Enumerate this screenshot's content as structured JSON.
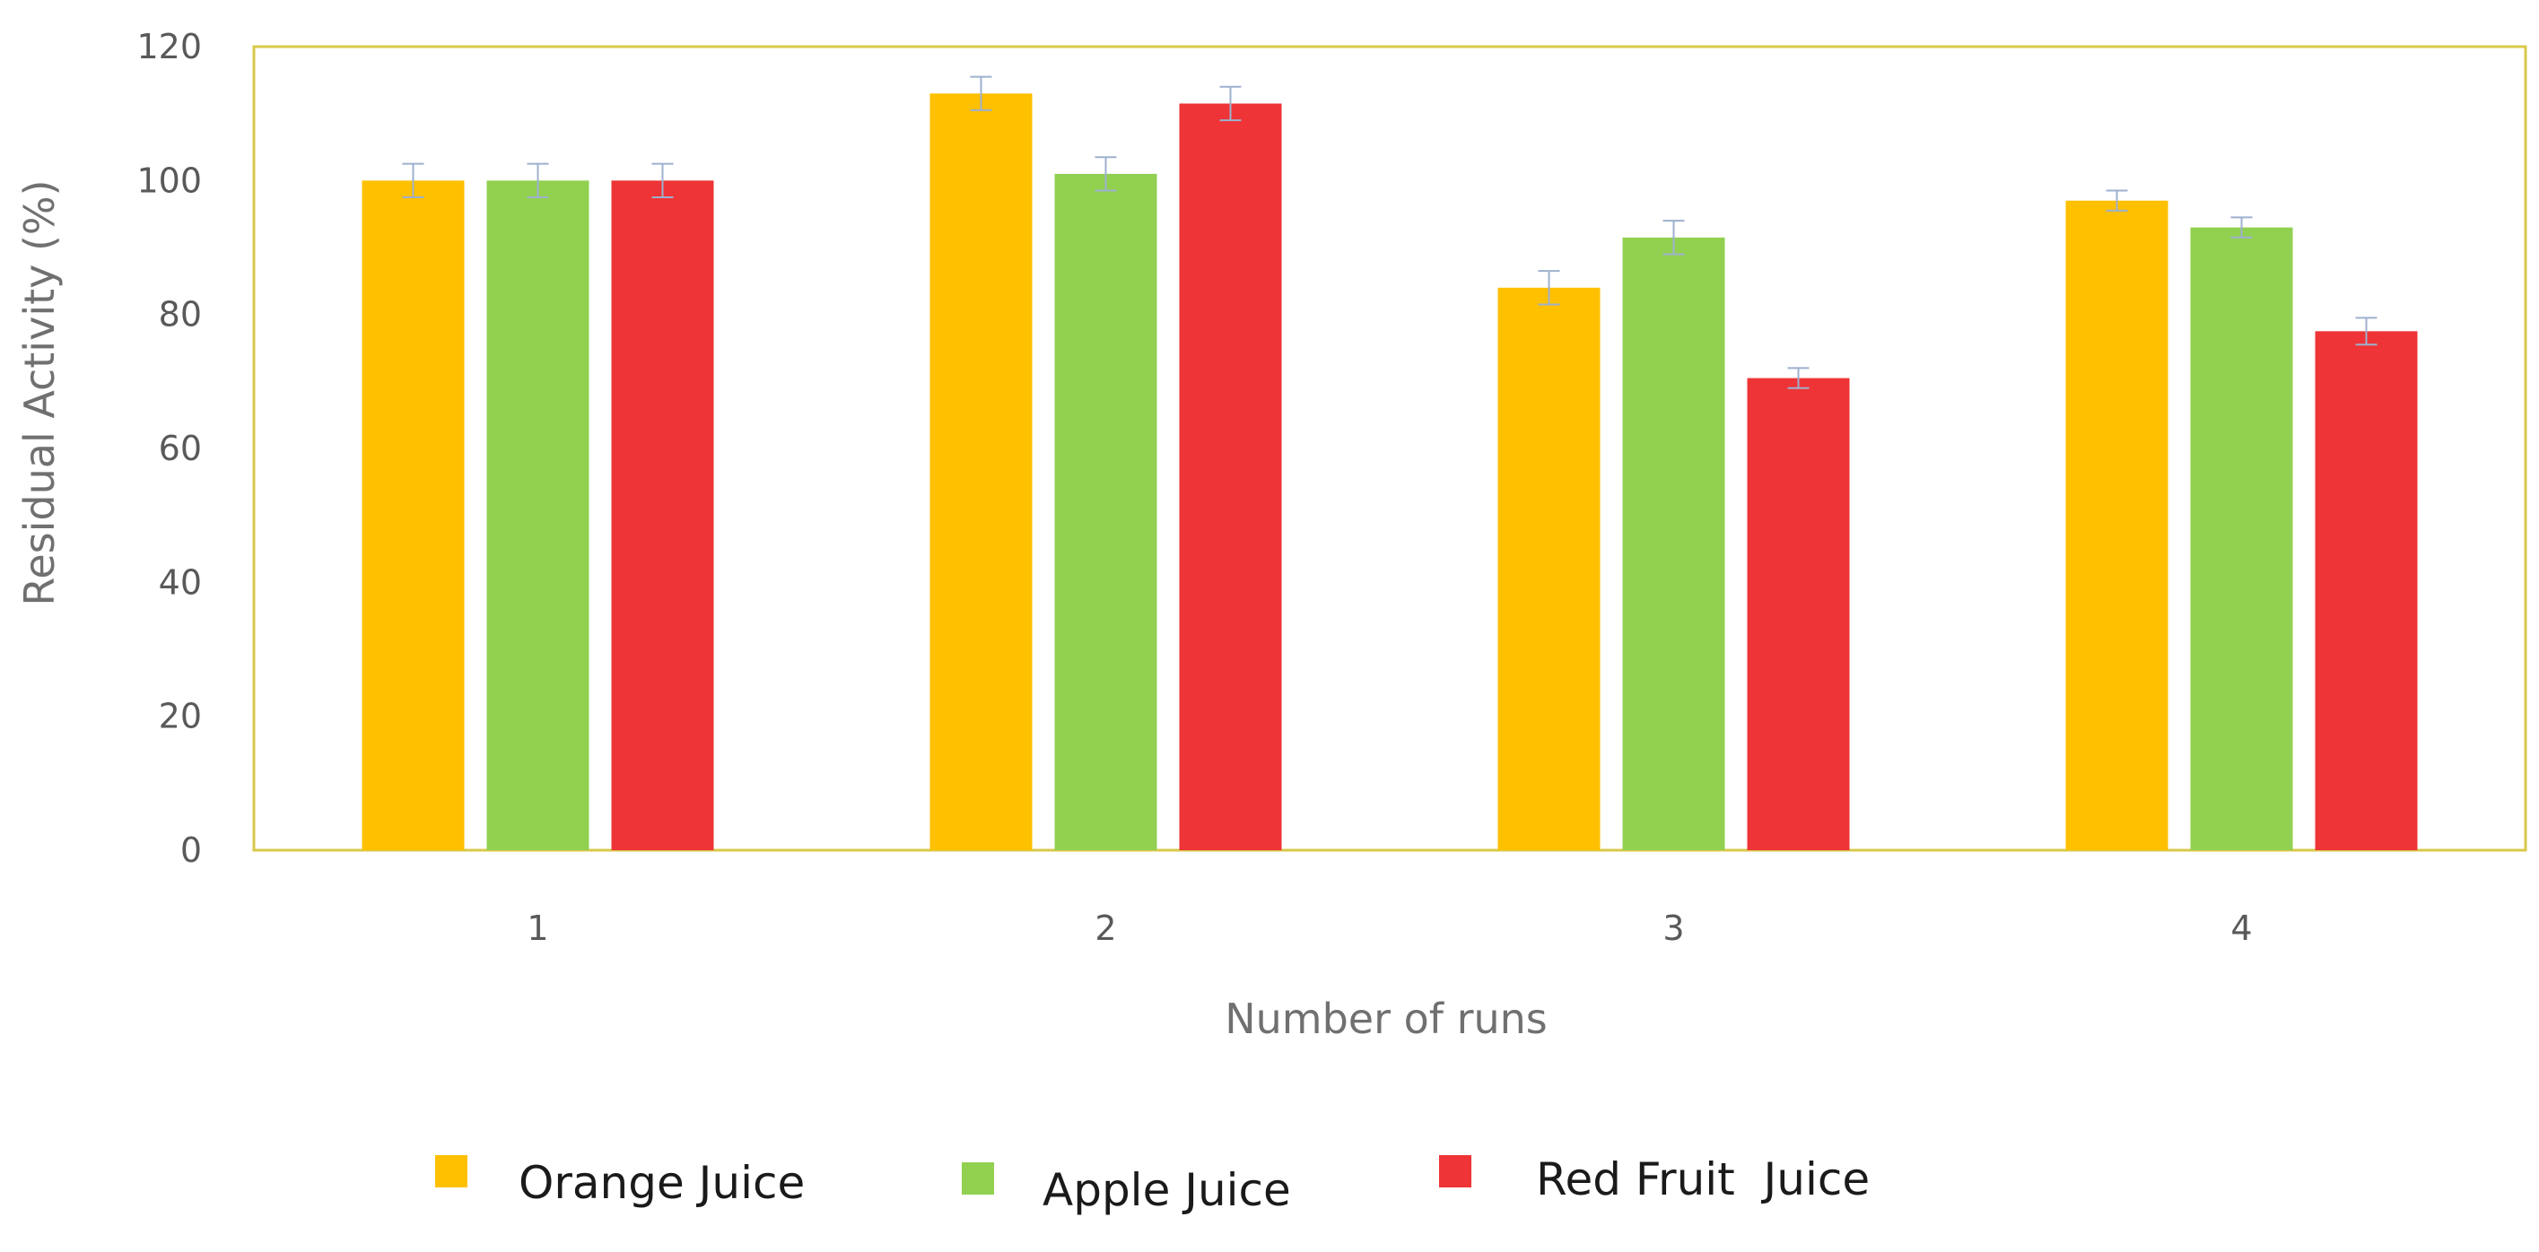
{
  "chart_data": {
    "type": "bar",
    "title": "",
    "xlabel": "Number of runs",
    "ylabel": "Residual Activity (%)",
    "categories": [
      "1",
      "2",
      "3",
      "4"
    ],
    "ylim": [
      0,
      120
    ],
    "yticks": [
      0,
      20,
      40,
      60,
      80,
      100,
      120
    ],
    "grid": false,
    "legend_position": "bottom",
    "error_bars": true,
    "series": [
      {
        "name": "Orange Juice",
        "color": "#FFC000",
        "values": [
          100,
          113,
          84,
          97
        ],
        "errors": [
          2.5,
          2.5,
          2.5,
          1.5
        ]
      },
      {
        "name": "Apple Juice",
        "color": "#92D050",
        "values": [
          100,
          101,
          91.5,
          93
        ],
        "errors": [
          2.5,
          2.5,
          2.5,
          1.5
        ]
      },
      {
        "name": "Red Fruit  Juice",
        "color": "#EE3436",
        "values": [
          100,
          111.5,
          70.5,
          77.5
        ],
        "errors": [
          2.5,
          2.5,
          1.5,
          2.0
        ]
      }
    ],
    "frame_color": "#D9C84A",
    "error_bar_color": "#9DB0CF"
  }
}
